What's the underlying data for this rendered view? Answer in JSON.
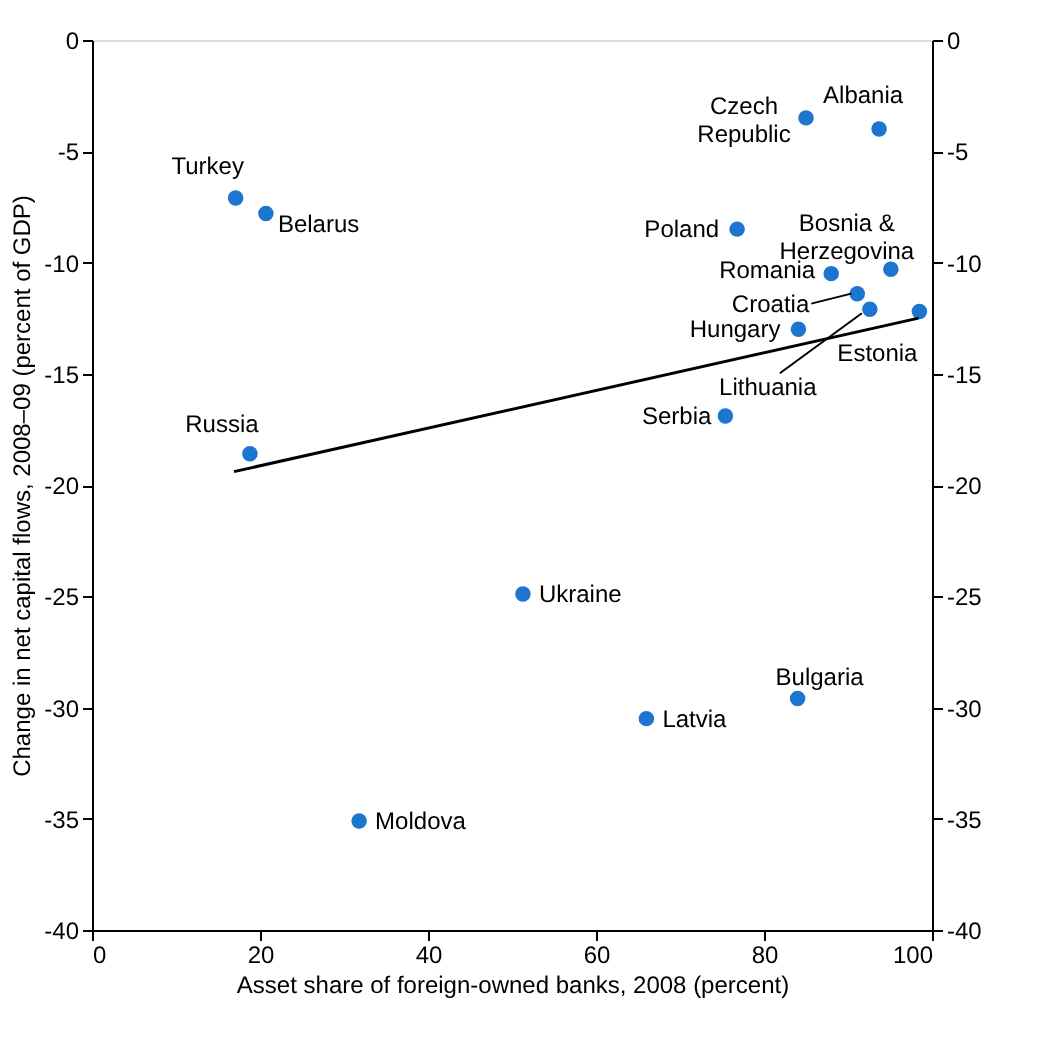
{
  "chart_data": {
    "type": "scatter",
    "xlabel": "Asset share of foreign-owned banks, 2008 (percent)",
    "ylabel": "Change in net capital flows, 2008–09 (percent of GDP)",
    "xlim": [
      0,
      100
    ],
    "xticks": [
      0,
      20,
      40,
      60,
      80,
      100
    ],
    "ylim": [
      -40,
      0
    ],
    "yticks": [
      -40,
      -35,
      -30,
      -25,
      -20,
      -15,
      -10,
      -5,
      0
    ],
    "y2lim": [
      -40,
      0
    ],
    "y2ticks": [
      -40,
      -35,
      -30,
      -25,
      -20,
      -15,
      -10,
      -5,
      0
    ],
    "grid": false,
    "series": [
      {
        "marker": "circle",
        "color": "#1c75cf",
        "x": [
          17.1,
          20.7,
          85.0,
          93.7,
          76.8,
          95.1,
          88.0,
          91.1,
          92.6,
          98.5,
          84.1,
          75.4,
          18.8,
          51.3,
          84.0,
          66.0,
          31.8
        ],
        "values": [
          -7.1,
          -7.8,
          -3.5,
          -4.0,
          -8.5,
          -10.3,
          -10.5,
          -11.4,
          -12.1,
          -12.2,
          -13.0,
          -16.9,
          -18.6,
          -24.9,
          -29.6,
          -30.5,
          -35.1
        ]
      },
      {
        "type": "line",
        "color": "#000000",
        "x": [
          16.9,
          98.4
        ],
        "values": [
          -19.4,
          -12.5
        ]
      }
    ],
    "annotations": [
      {
        "text": "Turkey",
        "x": 17.1,
        "y": -7.1
      },
      {
        "text": "Belarus",
        "x": 20.7,
        "y": -7.8
      },
      {
        "text": "Czech\nRepublic",
        "x": 85.0,
        "y": -3.5
      },
      {
        "text": "Albania",
        "x": 93.7,
        "y": -4.0
      },
      {
        "text": "Poland",
        "x": 76.8,
        "y": -8.5
      },
      {
        "text": "Bosnia &\nHerzegovina",
        "x": 95.1,
        "y": -10.3
      },
      {
        "text": "Romania",
        "x": 88.0,
        "y": -10.5
      },
      {
        "text": "Croatia",
        "x": 91.1,
        "y": -11.4
      },
      {
        "text": "Lithuania",
        "x": 92.6,
        "y": -12.1
      },
      {
        "text": "Estonia",
        "x": 98.5,
        "y": -12.2
      },
      {
        "text": "Hungary",
        "x": 84.1,
        "y": -13.0
      },
      {
        "text": "Serbia",
        "x": 75.4,
        "y": -16.9
      },
      {
        "text": "Russia",
        "x": 18.8,
        "y": -18.6
      },
      {
        "text": "Ukraine",
        "x": 51.3,
        "y": -24.9
      },
      {
        "text": "Bulgaria",
        "x": 84.0,
        "y": -29.6
      },
      {
        "text": "Latvia",
        "x": 66.0,
        "y": -30.5
      },
      {
        "text": "Moldova",
        "x": 31.8,
        "y": -35.1
      }
    ]
  }
}
